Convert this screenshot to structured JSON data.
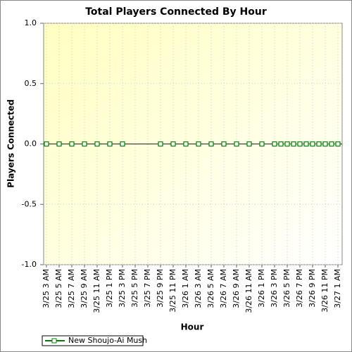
{
  "chart_data": {
    "type": "line",
    "title": "Total Players Connected By Hour",
    "x_label": "Hour",
    "y_label": "Players Connected",
    "categories": [
      "3/25 3 AM",
      null,
      "3/25 5 AM",
      null,
      "3/25 7 AM",
      null,
      "3/25 9 AM",
      null,
      "3/25 11 AM",
      null,
      "3/25 1 PM",
      null,
      "3/25 3 PM",
      null,
      "3/25 5 PM",
      null,
      "3/25 7 PM",
      null,
      "3/25 9 PM",
      null,
      "3/25 11 PM",
      null,
      "3/26 1 AM",
      null,
      "3/26 3 AM",
      null,
      "3/26 5 AM",
      null,
      "3/26 7 AM",
      null,
      "3/26 9 AM",
      null,
      "3/26 11 AM",
      null,
      "3/26 1 PM",
      null,
      "3/26 3 PM",
      null,
      "3/26 5 PM",
      null,
      "3/26 7 PM",
      null,
      "3/26 9 PM",
      null,
      "3/26 11 PM",
      null,
      "3/27 1 AM"
    ],
    "series": [
      {
        "name": "New Shoujo-Ai Mush",
        "color": "#008000",
        "values": [
          0,
          null,
          0,
          null,
          0,
          null,
          0,
          null,
          0,
          null,
          0,
          null,
          0,
          null,
          null,
          null,
          null,
          null,
          0,
          null,
          0,
          null,
          0,
          null,
          0,
          null,
          0,
          null,
          0,
          null,
          0,
          null,
          0,
          null,
          0,
          null,
          0,
          0,
          0,
          0,
          0,
          0,
          0,
          0,
          0,
          0,
          0
        ]
      }
    ],
    "ylim": [
      -1,
      1
    ],
    "yticks": [
      {
        "value": -1,
        "label": "-1.0"
      },
      -0.5,
      {
        "value": 0,
        "label": "0.0"
      },
      0.5,
      {
        "value": 1,
        "label": "1.0"
      }
    ],
    "grid": true,
    "legend": "bottom-left"
  }
}
